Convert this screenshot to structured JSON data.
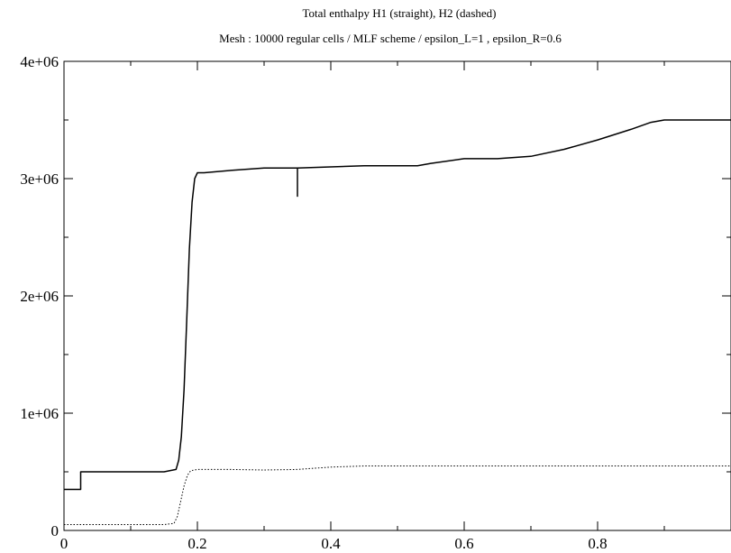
{
  "chart_data": {
    "type": "line",
    "title": "Total enthalpy H1 (straight), H2 (dashed)",
    "subtitle": "Mesh : 10000 regular cells / MLF scheme / epsilon_L=1 , epsilon_R=0.6",
    "xlabel": "",
    "ylabel": "",
    "xlim": [
      0,
      1
    ],
    "ylim": [
      0,
      4000000
    ],
    "grid": false,
    "x_ticks": [
      0,
      0.2,
      0.4,
      0.6,
      0.8
    ],
    "x_tick_labels": [
      "0",
      "0.2",
      "0.4",
      "0.6",
      "0.8"
    ],
    "y_ticks": [
      0,
      1000000,
      2000000,
      3000000,
      4000000
    ],
    "y_tick_labels": [
      "0",
      "1e+06",
      "2e+06",
      "3e+06",
      "4e+06"
    ],
    "series": [
      {
        "style": "solid",
        "color": "#000000",
        "x": [
          0.0,
          0.025,
          0.025,
          0.05,
          0.1,
          0.15,
          0.168,
          0.172,
          0.176,
          0.18,
          0.184,
          0.188,
          0.192,
          0.196,
          0.2,
          0.21,
          0.25,
          0.3,
          0.35,
          0.35,
          0.35,
          0.4,
          0.45,
          0.5,
          0.53,
          0.55,
          0.6,
          0.65,
          0.7,
          0.75,
          0.8,
          0.85,
          0.88,
          0.9,
          0.95,
          1.0
        ],
        "y": [
          350000,
          350000,
          500000,
          500000,
          500000,
          500000,
          520000,
          600000,
          800000,
          1200000,
          1800000,
          2400000,
          2800000,
          3000000,
          3050000,
          3050000,
          3070000,
          3090000,
          3090000,
          2850000,
          3090000,
          3100000,
          3110000,
          3110000,
          3110000,
          3130000,
          3170000,
          3170000,
          3190000,
          3250000,
          3330000,
          3420000,
          3480000,
          3500000,
          3500000,
          3500000
        ]
      },
      {
        "style": "dashed",
        "color": "#000000",
        "x": [
          0.0,
          0.05,
          0.1,
          0.15,
          0.165,
          0.17,
          0.175,
          0.18,
          0.185,
          0.19,
          0.2,
          0.25,
          0.3,
          0.35,
          0.4,
          0.45,
          0.5,
          0.55,
          0.6,
          0.7,
          0.8,
          0.9,
          1.0
        ],
        "y": [
          50000,
          50000,
          50000,
          50000,
          60000,
          120000,
          250000,
          380000,
          470000,
          510000,
          520000,
          520000,
          515000,
          520000,
          540000,
          550000,
          550000,
          550000,
          550000,
          550000,
          550000,
          550000,
          550000
        ]
      }
    ]
  }
}
